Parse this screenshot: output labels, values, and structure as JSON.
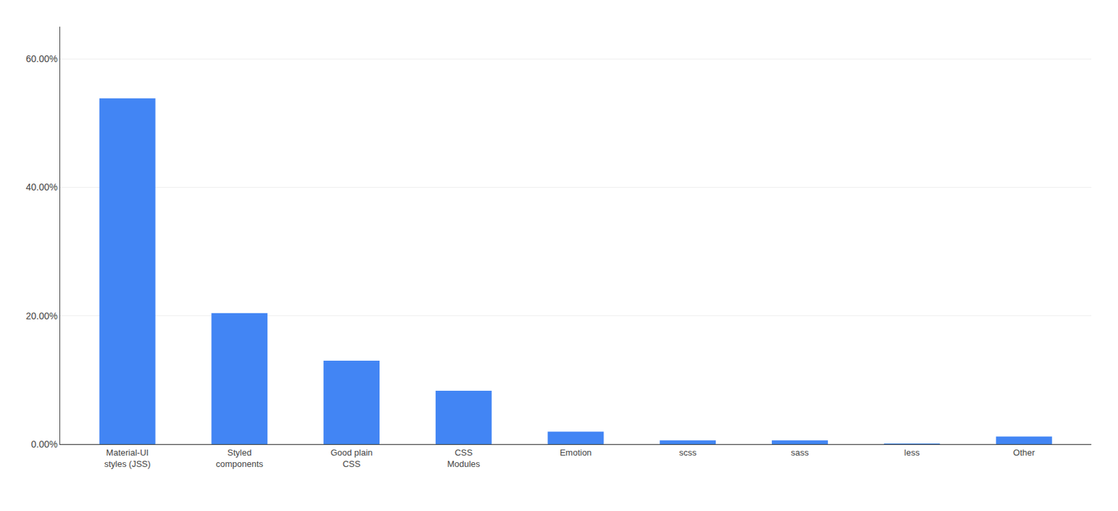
{
  "chart_data": {
    "type": "bar",
    "categories": [
      "Material-UI\nstyles (JSS)",
      "Styled\ncomponents",
      "Good plain\nCSS",
      "CSS\nModules",
      "Emotion",
      "scss",
      "sass",
      "less",
      "Other"
    ],
    "values": [
      53.84,
      20.41,
      13.01,
      8.31,
      1.96,
      0.59,
      0.59,
      0.09,
      1.19
    ],
    "color": "#4285f4",
    "ylim": [
      0,
      65
    ],
    "yticks": [
      {
        "value": 0,
        "label": "0.00%"
      },
      {
        "value": 20,
        "label": "20.00%"
      },
      {
        "value": 40,
        "label": "40.00%"
      },
      {
        "value": 60,
        "label": "60.00%"
      }
    ],
    "grid": true
  }
}
